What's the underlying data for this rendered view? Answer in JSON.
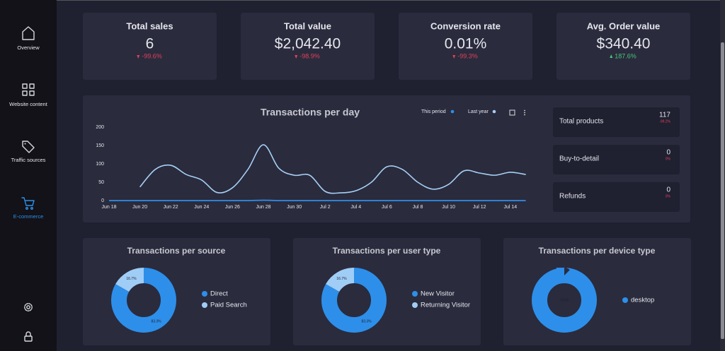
{
  "sidebar": {
    "items": [
      {
        "label": "Overview"
      },
      {
        "label": "Website content"
      },
      {
        "label": "Traffic sources"
      },
      {
        "label": "E-commerce"
      }
    ]
  },
  "kpis": [
    {
      "title": "Total sales",
      "value": "6",
      "change": "-99.6%"
    },
    {
      "title": "Total value",
      "value": "$2,042.40",
      "change": "-98.9%"
    },
    {
      "title": "Conversion rate",
      "value": "0.01%",
      "change": "-99.3%"
    },
    {
      "title": "Avg. Order value",
      "value": "$340.40",
      "change": "187.6%"
    }
  ],
  "side_stats": [
    {
      "label": "Total products",
      "value": "117",
      "change": "-99.2%"
    },
    {
      "label": "Buy-to-detail",
      "value": "0",
      "change": "0%"
    },
    {
      "label": "Refunds",
      "value": "0",
      "change": "0%"
    }
  ],
  "chart_data": [
    {
      "type": "line",
      "title": "Transactions per day",
      "categories": [
        "Jun 18",
        null,
        "Jun 20",
        null,
        "Jun 22",
        null,
        "Jun 24",
        null,
        "Jun 26",
        null,
        "Jun 28",
        null,
        "Jun 30",
        null,
        "Jul 2",
        null,
        "Jul 4",
        null,
        "Jul 6",
        null,
        "Jul 8",
        null,
        "Jul 10",
        null,
        "Jul 12",
        null,
        "Jul 14",
        null
      ],
      "series": [
        {
          "name": "This period",
          "color": "#2f8fe8",
          "values": [
            0,
            0,
            0,
            0,
            0,
            0,
            0,
            0,
            0,
            0,
            1,
            0,
            0,
            0,
            0,
            0,
            0,
            0,
            0,
            0,
            0,
            0,
            0,
            0,
            0,
            0,
            0,
            0
          ]
        },
        {
          "name": "Last year",
          "color": "#a6d0f5",
          "values": [
            null,
            null,
            37,
            85,
            96,
            71,
            56,
            22,
            35,
            85,
            152,
            88,
            69,
            69,
            25,
            21,
            27,
            50,
            92,
            85,
            50,
            31,
            44,
            81,
            75,
            69,
            77,
            71
          ]
        }
      ],
      "ylim": [
        0,
        200
      ],
      "yticks": [
        0,
        50,
        100,
        150,
        200
      ]
    },
    {
      "type": "pie",
      "title": "Transactions per source",
      "series": [
        {
          "name": "Direct",
          "color": "#2d8fea",
          "values": [
            83.3
          ],
          "value_labels": [
            "83.3%"
          ]
        },
        {
          "name": "Paid Search",
          "color": "#9fcdf5",
          "values": [
            16.7
          ],
          "value_labels": [
            "16.7%"
          ]
        }
      ]
    },
    {
      "type": "pie",
      "title": "Transactions per user type",
      "series": [
        {
          "name": "New Visitor",
          "color": "#2d8fea",
          "values": [
            83.3
          ],
          "value_labels": [
            "83.3%"
          ]
        },
        {
          "name": "Returning Visitor",
          "color": "#9fcdf5",
          "values": [
            16.7
          ],
          "value_labels": [
            "16.7%"
          ]
        }
      ]
    },
    {
      "type": "pie",
      "title": "Transactions per device type",
      "series": [
        {
          "name": "desktop",
          "color": "#2d8fea",
          "values": [
            100
          ],
          "value_labels": [
            "100%"
          ]
        }
      ]
    }
  ]
}
